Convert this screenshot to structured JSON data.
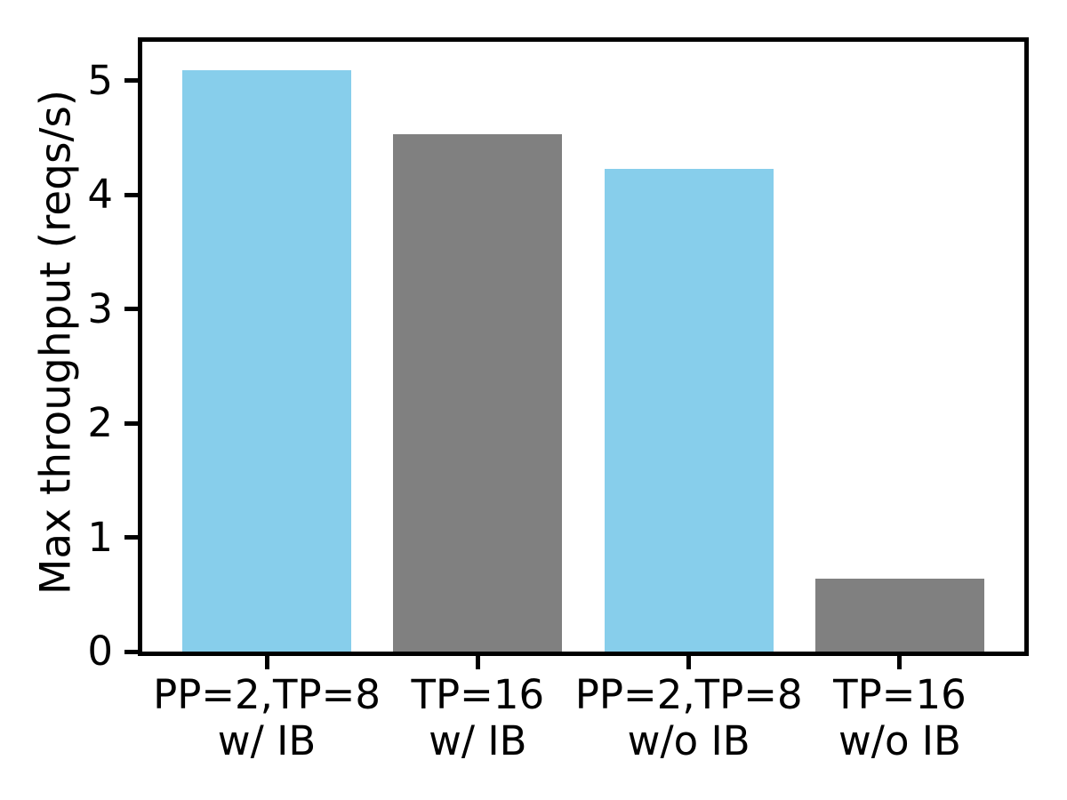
{
  "chart_data": {
    "type": "bar",
    "title": "",
    "xlabel": "",
    "ylabel": "Max throughput (reqs/s)",
    "categories": [
      "PP=2,TP=8\nw/ IB",
      "TP=16\nw/ IB",
      "PP=2,TP=8\nw/o IB",
      "TP=16\nw/o IB"
    ],
    "values": [
      5.09,
      4.53,
      4.23,
      0.64
    ],
    "bar_colors": [
      "#87ceeb",
      "#808080",
      "#87ceeb",
      "#808080"
    ],
    "yticks": [
      0,
      1,
      2,
      3,
      4,
      5
    ],
    "ylim": [
      0,
      5.34
    ],
    "xlim": [
      -0.59,
      3.59
    ],
    "bar_width": 0.8,
    "grid": false,
    "legend": null,
    "spines": "all",
    "axis_color": "#000000",
    "text_color": "#000000",
    "background_color": "#ffffff"
  }
}
